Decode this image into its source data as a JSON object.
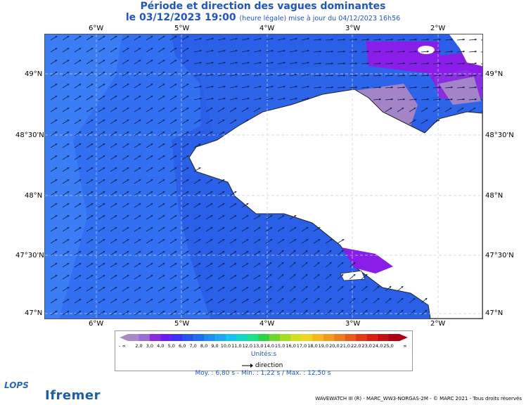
{
  "title": "Période et direction des vagues dominantes",
  "date_main": "le 03/12/2023 19:00",
  "date_sub": "(heure légale) mise à jour du 04/12/2023 16h56",
  "axes": {
    "lon_labels": [
      "6°W",
      "5°W",
      "4°W",
      "3°W",
      "2°W"
    ],
    "lat_labels": [
      "49°N",
      "48°30'N",
      "48°N",
      "47°30'N",
      "47°N"
    ]
  },
  "legend": {
    "ticks": [
      "- ∞",
      "2,0",
      "3,0",
      "4,0",
      "5,0",
      "6,0",
      "7,0",
      "8,0",
      "9,0",
      "10,0",
      "11,0",
      "12,0",
      "13,0",
      "14,0",
      "15,0",
      "16,0",
      "17,0",
      "18,0",
      "19,0",
      "20,0",
      "21,0",
      "22,0",
      "23,0",
      "24,0",
      "25,0",
      "∞"
    ],
    "colors": [
      "#a78bc8",
      "#9b6bd6",
      "#8a2be2",
      "#6a1ef0",
      "#3a33f5",
      "#2555ef",
      "#1f6ef2",
      "#1e8cf5",
      "#1ea8f2",
      "#17c3ee",
      "#15d7c9",
      "#1de08a",
      "#2ed24a",
      "#6cd62c",
      "#a8dc22",
      "#d4df1f",
      "#f0d520",
      "#f6b71f",
      "#f39a1c",
      "#ef7c1a",
      "#ea5a18",
      "#e33a16",
      "#d81f14",
      "#c40f12",
      "#b00010"
    ],
    "unit": "Unités",
    "direction_label": "direction"
  },
  "stats": "Moy. : 6,80 s   -   Min. : 1,22 s / Max. : 12,50 s",
  "credit": "WAVEWATCH III (R) - MARC_WW3-NORGAS-2M - © MARC 2021 - Tous droits réservés",
  "logos": {
    "lops": "LOPS",
    "ifremer": "Ifremer"
  },
  "map_colors": {
    "sea_dark": "#2a5fe8",
    "sea_mid": "#3270f2",
    "sea_light": "#3f84f6",
    "land": "#ffffff",
    "purple": "#8a1ee8",
    "mauve": "#a384c6"
  }
}
